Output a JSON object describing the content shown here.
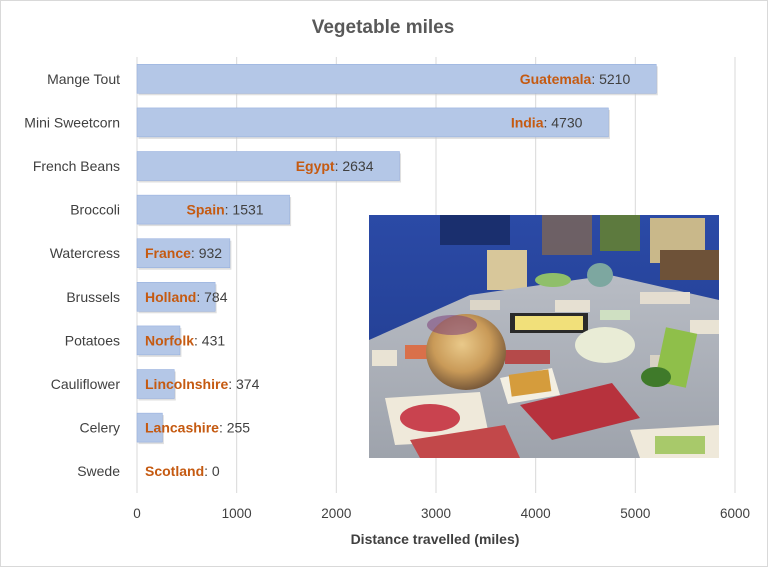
{
  "chart_data": {
    "type": "bar",
    "title": "Vegetable miles",
    "xlabel": "Distance travelled (miles)",
    "ylabel": "",
    "xlim": [
      0,
      6000
    ],
    "x_ticks": [
      "0",
      "1000",
      "2000",
      "3000",
      "4000",
      "5000",
      "6000"
    ],
    "grid": true,
    "orientation": "horizontal",
    "categories": [
      "Mange Tout",
      "Mini Sweetcorn",
      "French Beans",
      "Broccoli",
      "Watercress",
      "Brussels",
      "Potatoes",
      "Cauliflower",
      "Celery",
      "Swede"
    ],
    "origins": [
      "Guatemala",
      "India",
      "Egypt",
      "Spain",
      "France",
      "Holland",
      "Norfolk",
      "Lincolnshire",
      "Lancashire",
      "Scotland"
    ],
    "values": [
      5210,
      4730,
      2634,
      1531,
      932,
      784,
      431,
      374,
      255,
      0
    ],
    "colors": {
      "bar": "#b4c7e7",
      "bar_edge": "#8faadc",
      "origin_text": "#c55a11",
      "value_text": "#404040",
      "grid": "#d9d9d9"
    }
  },
  "photo": {
    "description_icon": "vegetables-on-table-photo"
  }
}
